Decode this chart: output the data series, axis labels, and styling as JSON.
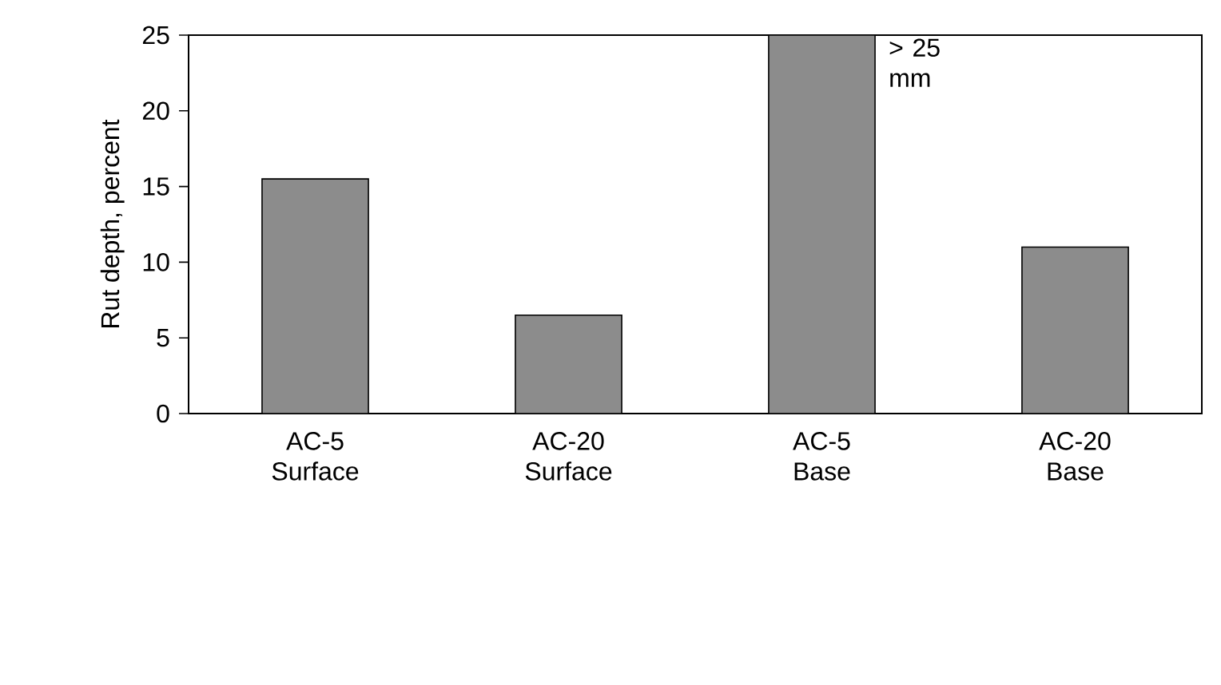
{
  "chart_data": {
    "type": "bar",
    "ylabel": "Rut depth, percent",
    "categories": [
      "AC-5 Surface",
      "AC-20 Surface",
      "AC-5 Base",
      "AC-20 Base"
    ],
    "values": [
      15.5,
      6.5,
      25,
      11
    ],
    "color": "#8c8c8c",
    "ylim": [
      0,
      25
    ],
    "yticks": [
      0,
      5,
      10,
      15,
      20,
      25
    ],
    "annotations": [
      {
        "text": "> 25 mm",
        "x": "AC-5 Base",
        "y": 25
      }
    ]
  }
}
